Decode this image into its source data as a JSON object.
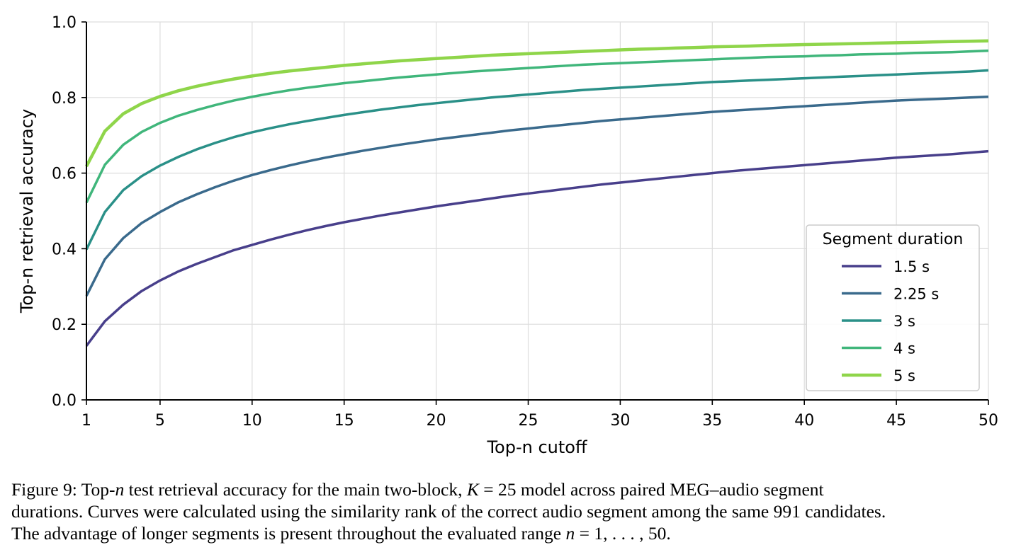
{
  "chart_data": {
    "type": "line",
    "xlabel": "Top-n cutoff",
    "ylabel": "Top-n retrieval accuracy",
    "xlim": [
      1,
      50
    ],
    "ylim": [
      0.0,
      1.0
    ],
    "x_ticks": [
      1,
      5,
      10,
      15,
      20,
      25,
      30,
      35,
      40,
      45,
      50
    ],
    "y_ticks": [
      "0.0",
      "0.2",
      "0.4",
      "0.6",
      "0.8",
      "1.0"
    ],
    "grid": true,
    "legend": {
      "title": "Segment duration",
      "placement": "lower-right"
    },
    "x": [
      1,
      2,
      3,
      4,
      5,
      6,
      7,
      8,
      9,
      10,
      11,
      12,
      13,
      14,
      15,
      16,
      17,
      18,
      19,
      20,
      21,
      22,
      23,
      24,
      25,
      26,
      27,
      28,
      29,
      30,
      31,
      32,
      33,
      34,
      35,
      36,
      37,
      38,
      39,
      40,
      41,
      42,
      43,
      44,
      45,
      46,
      47,
      48,
      49,
      50
    ],
    "series": [
      {
        "name": "1.5 s",
        "color": "#483f8b",
        "values": [
          0.143,
          0.208,
          0.252,
          0.288,
          0.316,
          0.34,
          0.36,
          0.378,
          0.396,
          0.41,
          0.424,
          0.437,
          0.449,
          0.46,
          0.47,
          0.479,
          0.488,
          0.496,
          0.504,
          0.512,
          0.519,
          0.526,
          0.533,
          0.54,
          0.546,
          0.552,
          0.558,
          0.564,
          0.57,
          0.575,
          0.58,
          0.585,
          0.59,
          0.595,
          0.6,
          0.605,
          0.609,
          0.613,
          0.617,
          0.621,
          0.625,
          0.629,
          0.633,
          0.637,
          0.641,
          0.644,
          0.647,
          0.65,
          0.654,
          0.658
        ]
      },
      {
        "name": "2.25 s",
        "color": "#3a6a8c",
        "values": [
          0.275,
          0.372,
          0.428,
          0.468,
          0.497,
          0.523,
          0.544,
          0.563,
          0.58,
          0.595,
          0.608,
          0.62,
          0.631,
          0.641,
          0.65,
          0.659,
          0.667,
          0.675,
          0.682,
          0.689,
          0.695,
          0.701,
          0.707,
          0.713,
          0.718,
          0.723,
          0.728,
          0.733,
          0.738,
          0.742,
          0.746,
          0.75,
          0.754,
          0.758,
          0.762,
          0.765,
          0.768,
          0.771,
          0.774,
          0.777,
          0.78,
          0.783,
          0.786,
          0.789,
          0.792,
          0.794,
          0.796,
          0.798,
          0.8,
          0.802
        ]
      },
      {
        "name": "3 s",
        "color": "#2a9088",
        "values": [
          0.398,
          0.497,
          0.555,
          0.592,
          0.62,
          0.643,
          0.663,
          0.68,
          0.695,
          0.708,
          0.719,
          0.729,
          0.738,
          0.746,
          0.754,
          0.761,
          0.768,
          0.774,
          0.78,
          0.785,
          0.79,
          0.795,
          0.8,
          0.804,
          0.808,
          0.812,
          0.816,
          0.82,
          0.823,
          0.826,
          0.829,
          0.832,
          0.835,
          0.838,
          0.841,
          0.843,
          0.845,
          0.847,
          0.849,
          0.851,
          0.853,
          0.855,
          0.857,
          0.859,
          0.861,
          0.863,
          0.865,
          0.867,
          0.869,
          0.872
        ]
      },
      {
        "name": "4 s",
        "color": "#40b67b",
        "values": [
          0.522,
          0.622,
          0.675,
          0.709,
          0.733,
          0.752,
          0.767,
          0.78,
          0.792,
          0.802,
          0.811,
          0.819,
          0.826,
          0.832,
          0.838,
          0.843,
          0.848,
          0.853,
          0.857,
          0.861,
          0.865,
          0.869,
          0.872,
          0.875,
          0.878,
          0.881,
          0.884,
          0.887,
          0.889,
          0.891,
          0.893,
          0.895,
          0.897,
          0.899,
          0.901,
          0.903,
          0.905,
          0.907,
          0.908,
          0.909,
          0.911,
          0.912,
          0.914,
          0.915,
          0.916,
          0.918,
          0.919,
          0.92,
          0.922,
          0.924
        ]
      },
      {
        "name": "5 s",
        "color": "#8fd54a",
        "values": [
          0.618,
          0.711,
          0.757,
          0.784,
          0.803,
          0.818,
          0.83,
          0.84,
          0.849,
          0.857,
          0.864,
          0.87,
          0.875,
          0.88,
          0.885,
          0.889,
          0.893,
          0.897,
          0.9,
          0.903,
          0.906,
          0.909,
          0.912,
          0.914,
          0.916,
          0.918,
          0.92,
          0.922,
          0.924,
          0.926,
          0.928,
          0.929,
          0.931,
          0.932,
          0.934,
          0.935,
          0.936,
          0.938,
          0.939,
          0.94,
          0.941,
          0.942,
          0.943,
          0.944,
          0.945,
          0.946,
          0.947,
          0.948,
          0.949,
          0.95
        ]
      }
    ]
  },
  "caption": {
    "line1_a": "Figure 9: Top-",
    "line1_n": "n",
    "line1_b": " test retrieval accuracy for the main two-block, ",
    "line1_k": "K",
    "line1_eq": " = 25",
    "line1_c": " model across paired MEG–audio segment",
    "line2": "durations. Curves were calculated using the similarity rank of the correct audio segment among the same 991 candidates.",
    "line3_a": "The advantage of longer segments is present throughout the evaluated range ",
    "line3_n": "n",
    "line3_b": " = 1, . . . , 50."
  }
}
